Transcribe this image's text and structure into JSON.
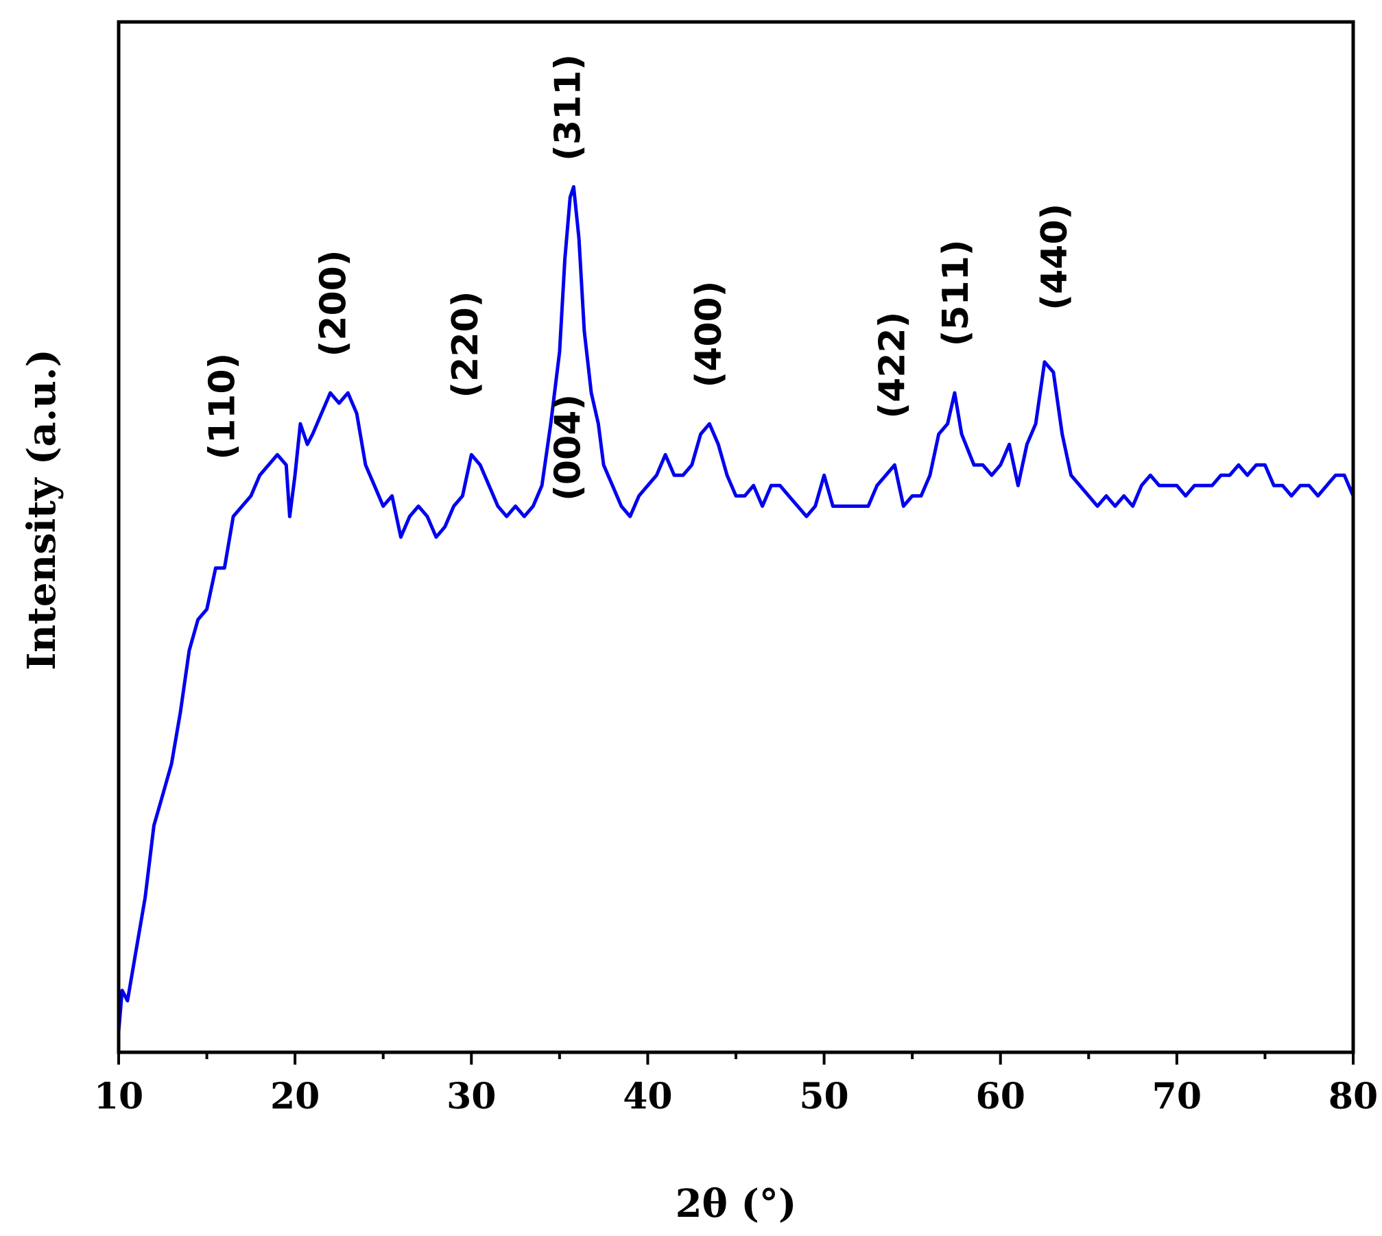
{
  "chart_data": {
    "type": "line",
    "title": "",
    "xlabel": "2θ (°)",
    "ylabel": "Intensity (a.u.)",
    "xlim": [
      10,
      80
    ],
    "ylim": [
      0,
      100
    ],
    "x_ticks": [
      10,
      20,
      30,
      40,
      50,
      60,
      70,
      80
    ],
    "x_tick_labels": [
      "10",
      "20",
      "30",
      "40",
      "50",
      "60",
      "70",
      "80"
    ],
    "y_ticks_shown": false,
    "grid": false,
    "line_color": "#0000ee",
    "series": [
      {
        "name": "",
        "points": [
          [
            10.0,
            2
          ],
          [
            10.2,
            6
          ],
          [
            10.5,
            5
          ],
          [
            11.0,
            10
          ],
          [
            11.5,
            15
          ],
          [
            12.0,
            22
          ],
          [
            12.5,
            25
          ],
          [
            13.0,
            28
          ],
          [
            13.5,
            33
          ],
          [
            14.0,
            39
          ],
          [
            14.5,
            42
          ],
          [
            15.0,
            43
          ],
          [
            15.5,
            47
          ],
          [
            16.0,
            47
          ],
          [
            16.5,
            52
          ],
          [
            17.0,
            53
          ],
          [
            17.5,
            54
          ],
          [
            18.0,
            56
          ],
          [
            18.5,
            57
          ],
          [
            19.0,
            58
          ],
          [
            19.5,
            57
          ],
          [
            19.7,
            52
          ],
          [
            20.0,
            56
          ],
          [
            20.3,
            61
          ],
          [
            20.7,
            59
          ],
          [
            21.0,
            60
          ],
          [
            21.5,
            62
          ],
          [
            22.0,
            64
          ],
          [
            22.5,
            63
          ],
          [
            23.0,
            64
          ],
          [
            23.5,
            62
          ],
          [
            24.0,
            57
          ],
          [
            24.5,
            55
          ],
          [
            25.0,
            53
          ],
          [
            25.5,
            54
          ],
          [
            26.0,
            50
          ],
          [
            26.5,
            52
          ],
          [
            27.0,
            53
          ],
          [
            27.5,
            52
          ],
          [
            28.0,
            50
          ],
          [
            28.5,
            51
          ],
          [
            29.0,
            53
          ],
          [
            29.5,
            54
          ],
          [
            30.0,
            58
          ],
          [
            30.5,
            57
          ],
          [
            31.0,
            55
          ],
          [
            31.5,
            53
          ],
          [
            32.0,
            52
          ],
          [
            32.5,
            53
          ],
          [
            33.0,
            52
          ],
          [
            33.5,
            53
          ],
          [
            34.0,
            55
          ],
          [
            34.5,
            61
          ],
          [
            35.0,
            68
          ],
          [
            35.3,
            77
          ],
          [
            35.6,
            83
          ],
          [
            35.8,
            84
          ],
          [
            36.1,
            79
          ],
          [
            36.4,
            70
          ],
          [
            36.8,
            64
          ],
          [
            37.2,
            61
          ],
          [
            37.5,
            57
          ],
          [
            38.0,
            55
          ],
          [
            38.5,
            53
          ],
          [
            39.0,
            52
          ],
          [
            39.5,
            54
          ],
          [
            40.0,
            55
          ],
          [
            40.5,
            56
          ],
          [
            41.0,
            58
          ],
          [
            41.5,
            56
          ],
          [
            42.0,
            56
          ],
          [
            42.5,
            57
          ],
          [
            43.0,
            60
          ],
          [
            43.5,
            61
          ],
          [
            44.0,
            59
          ],
          [
            44.5,
            56
          ],
          [
            45.0,
            54
          ],
          [
            45.5,
            54
          ],
          [
            46.0,
            55
          ],
          [
            46.5,
            53
          ],
          [
            47.0,
            55
          ],
          [
            47.5,
            55
          ],
          [
            48.0,
            54
          ],
          [
            48.5,
            53
          ],
          [
            49.0,
            52
          ],
          [
            49.5,
            53
          ],
          [
            50.0,
            56
          ],
          [
            50.5,
            53
          ],
          [
            51.0,
            53
          ],
          [
            51.5,
            53
          ],
          [
            52.0,
            53
          ],
          [
            52.5,
            53
          ],
          [
            53.0,
            55
          ],
          [
            53.5,
            56
          ],
          [
            54.0,
            57
          ],
          [
            54.5,
            53
          ],
          [
            55.0,
            54
          ],
          [
            55.5,
            54
          ],
          [
            56.0,
            56
          ],
          [
            56.5,
            60
          ],
          [
            57.0,
            61
          ],
          [
            57.4,
            64
          ],
          [
            57.8,
            60
          ],
          [
            58.5,
            57
          ],
          [
            59.0,
            57
          ],
          [
            59.5,
            56
          ],
          [
            60.0,
            57
          ],
          [
            60.5,
            59
          ],
          [
            61.0,
            55
          ],
          [
            61.5,
            59
          ],
          [
            62.0,
            61
          ],
          [
            62.5,
            67
          ],
          [
            63.0,
            66
          ],
          [
            63.5,
            60
          ],
          [
            64.0,
            56
          ],
          [
            64.5,
            55
          ],
          [
            65.0,
            54
          ],
          [
            65.5,
            53
          ],
          [
            66.0,
            54
          ],
          [
            66.5,
            53
          ],
          [
            67.0,
            54
          ],
          [
            67.5,
            53
          ],
          [
            68.0,
            55
          ],
          [
            68.5,
            56
          ],
          [
            69.0,
            55
          ],
          [
            70.0,
            55
          ],
          [
            70.5,
            54
          ],
          [
            71.0,
            55
          ],
          [
            72.0,
            55
          ],
          [
            72.5,
            56
          ],
          [
            73.0,
            56
          ],
          [
            73.5,
            57
          ],
          [
            74.0,
            56
          ],
          [
            74.5,
            57
          ],
          [
            75.0,
            57
          ],
          [
            75.5,
            55
          ],
          [
            76.0,
            55
          ],
          [
            76.5,
            54
          ],
          [
            77.0,
            55
          ],
          [
            77.5,
            55
          ],
          [
            78.0,
            54
          ],
          [
            78.5,
            55
          ],
          [
            79.0,
            56
          ],
          [
            79.5,
            56
          ],
          [
            80.0,
            54
          ]
        ]
      }
    ],
    "annotations": [
      {
        "text": "(110)",
        "x": 16.0,
        "y": 57.5
      },
      {
        "text": "(200)",
        "x": 22.3,
        "y": 67.5
      },
      {
        "text": "(220)",
        "x": 29.8,
        "y": 63.5
      },
      {
        "text": "(311)",
        "x": 35.6,
        "y": 86.5
      },
      {
        "text": "(004)",
        "x": 35.6,
        "y": 53.5
      },
      {
        "text": "(400)",
        "x": 43.6,
        "y": 64.5
      },
      {
        "text": "(422)",
        "x": 54.0,
        "y": 61.5
      },
      {
        "text": "(511)",
        "x": 57.6,
        "y": 68.5
      },
      {
        "text": "(440)",
        "x": 63.2,
        "y": 72.0
      }
    ]
  }
}
